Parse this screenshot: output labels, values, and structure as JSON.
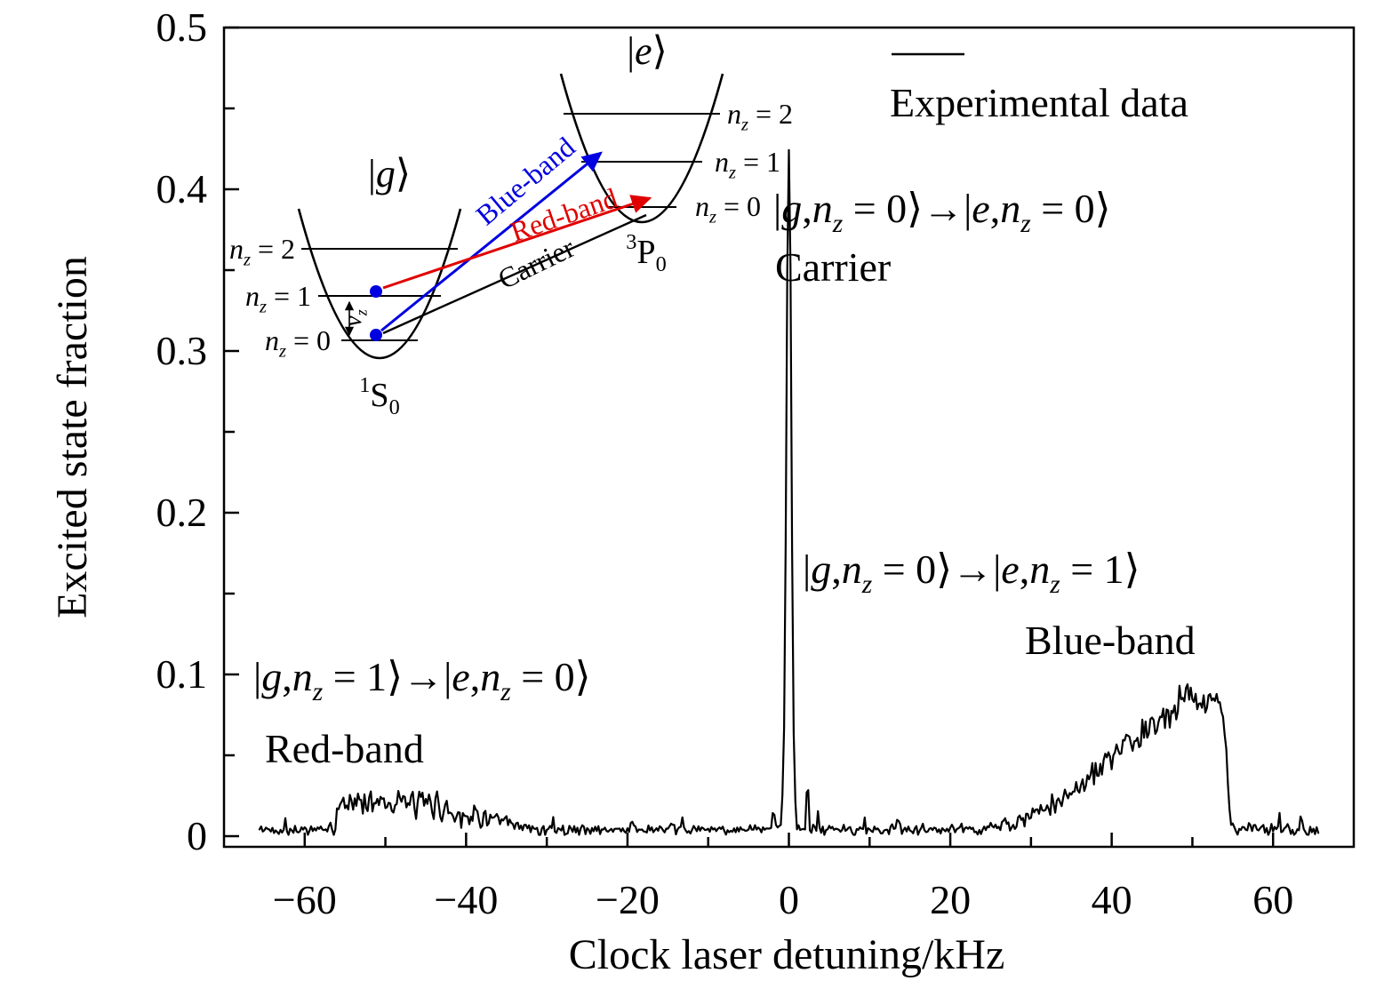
{
  "colors": {
    "trace": "#000000",
    "blue": "#0000e0",
    "red": "#e00000",
    "text": "#000000",
    "background": "#ffffff"
  },
  "axes": {
    "xlabel": "Clock laser detuning/kHz",
    "ylabel": "Excited state fraction",
    "x_ticks": [
      -60,
      -40,
      -20,
      0,
      20,
      40,
      60
    ],
    "x_tick_labels": [
      "−60",
      "−40",
      "−20",
      "0",
      "20",
      "40",
      "60"
    ],
    "x_minor_ticks": [
      -50,
      -30,
      -10,
      10,
      30,
      50
    ],
    "y_ticks": [
      0,
      0.1,
      0.2,
      0.3,
      0.4,
      0.5
    ],
    "y_tick_labels": [
      "0",
      "0.1",
      "0.2",
      "0.3",
      "0.4",
      "0.5"
    ],
    "y_minor_ticks": [
      0.05,
      0.15,
      0.25,
      0.35,
      0.45
    ],
    "xlim": [
      -70,
      70
    ],
    "ylim": [
      0,
      0.5
    ]
  },
  "legend": {
    "label": "Experimental data"
  },
  "annotations": {
    "carrier_transition": "|g,n_{z} = 0⟩→|e,n_{z} = 0⟩",
    "carrier_name": "Carrier",
    "blue_transition": "|g,n_{z} = 0⟩→|e,n_{z} = 1⟩",
    "blue_name": "Blue-band",
    "red_transition": "|g,n_{z} = 1⟩→|e,n_{z} = 0⟩",
    "red_name": "Red-band"
  },
  "inset": {
    "ground_state": "|g⟩",
    "excited_state": "|e⟩",
    "ground_term": "^{1}S_{0}",
    "excited_term": "^{3}P_{0}",
    "ground_level_labels": [
      "n_{z} = 2",
      "n_{z} = 1",
      "n_{z} = 0"
    ],
    "excited_level_labels": [
      "n_{z} = 2",
      "n_{z} = 1",
      "n_{z} = 0"
    ],
    "trap_frequency": "v_{z}",
    "arrow_blue": "Blue-band",
    "arrow_red": "Red-band",
    "arrow_carrier": "Carrier"
  },
  "chart_data": {
    "type": "line",
    "title": "",
    "xlabel": "Clock laser detuning/kHz",
    "ylabel": "Excited state fraction",
    "xlim": [
      -70,
      70
    ],
    "ylim": [
      0,
      0.5
    ],
    "grid": false,
    "legend_position": "upper right",
    "series": [
      {
        "name": "Experimental data",
        "color": "#000000"
      }
    ],
    "features": {
      "baseline_level": 0.005,
      "carrier": {
        "center_kHz": 0,
        "peak": 0.42,
        "fwhm_kHz": 0.7,
        "transition": "|g,nz=0> -> |e,nz=0>"
      },
      "red_sideband": {
        "range_kHz": [
          -56,
          -33
        ],
        "typical_level": 0.021,
        "max": 0.03,
        "transition": "|g,nz=1> -> |e,nz=0>"
      },
      "blue_sideband": {
        "range_kHz": [
          24,
          54.6
        ],
        "peak": 0.095,
        "sharp_edge_kHz": 54.4,
        "transition": "|g,nz=0> -> |e,nz=1>"
      }
    },
    "x_range": [
      -65.6,
      65.6
    ],
    "sample_step_kHz": 0.2,
    "noise_seed": 42,
    "envelope": [
      [
        -65.6,
        0.004
      ],
      [
        -57,
        0.004
      ],
      [
        -56.2,
        0.004
      ],
      [
        -55.8,
        0.02
      ],
      [
        -54,
        0.021
      ],
      [
        -52,
        0.022
      ],
      [
        -50,
        0.022
      ],
      [
        -48,
        0.021
      ],
      [
        -46,
        0.019
      ],
      [
        -44,
        0.02
      ],
      [
        -42,
        0.015
      ],
      [
        -40,
        0.013
      ],
      [
        -38,
        0.012
      ],
      [
        -36,
        0.009
      ],
      [
        -34,
        0.006
      ],
      [
        -33,
        0.005
      ],
      [
        -31,
        0.004
      ],
      [
        -25,
        0.004
      ],
      [
        -15,
        0.004
      ],
      [
        -5,
        0.004
      ],
      [
        -2.5,
        0.004
      ],
      [
        -1.6,
        0.005
      ],
      [
        -1.0,
        0.008
      ],
      [
        -0.7,
        0.03
      ],
      [
        -0.5,
        0.1
      ],
      [
        -0.35,
        0.22
      ],
      [
        -0.2,
        0.35
      ],
      [
        -0.1,
        0.41
      ],
      [
        0,
        0.424
      ],
      [
        0.1,
        0.41
      ],
      [
        0.2,
        0.35
      ],
      [
        0.35,
        0.22
      ],
      [
        0.5,
        0.1
      ],
      [
        0.7,
        0.03
      ],
      [
        1.0,
        0.008
      ],
      [
        1.6,
        0.005
      ],
      [
        2.5,
        0.004
      ],
      [
        5,
        0.004
      ],
      [
        10,
        0.004
      ],
      [
        15,
        0.004
      ],
      [
        20,
        0.004
      ],
      [
        24,
        0.0045
      ],
      [
        26,
        0.006
      ],
      [
        28,
        0.008
      ],
      [
        30,
        0.012
      ],
      [
        32,
        0.017
      ],
      [
        34,
        0.023
      ],
      [
        36,
        0.031
      ],
      [
        38,
        0.04
      ],
      [
        40,
        0.048
      ],
      [
        42,
        0.056
      ],
      [
        44,
        0.064
      ],
      [
        46,
        0.07
      ],
      [
        47.5,
        0.078
      ],
      [
        48.5,
        0.085
      ],
      [
        49.2,
        0.09
      ],
      [
        50,
        0.087
      ],
      [
        50.8,
        0.083
      ],
      [
        51.5,
        0.085
      ],
      [
        52.2,
        0.083
      ],
      [
        53,
        0.085
      ],
      [
        53.8,
        0.077
      ],
      [
        54.2,
        0.055
      ],
      [
        54.5,
        0.025
      ],
      [
        54.8,
        0.008
      ],
      [
        55.2,
        0.005
      ],
      [
        56,
        0.004
      ],
      [
        58,
        0.004
      ],
      [
        60,
        0.0045
      ],
      [
        62,
        0.005
      ],
      [
        64,
        0.004
      ],
      [
        65.6,
        0.004
      ]
    ],
    "noise_amplitude": [
      [
        -65.6,
        0.0025
      ],
      [
        -57,
        0.0028
      ],
      [
        -56,
        0.005
      ],
      [
        -54,
        0.0065
      ],
      [
        -50,
        0.007
      ],
      [
        -46,
        0.0075
      ],
      [
        -44,
        0.007
      ],
      [
        -40,
        0.0065
      ],
      [
        -37,
        0.005
      ],
      [
        -34,
        0.004
      ],
      [
        -32,
        0.003
      ],
      [
        -28,
        0.0028
      ],
      [
        -10,
        0.0025
      ],
      [
        -2,
        0.002
      ],
      [
        -0.5,
        0.003
      ],
      [
        0,
        0.004
      ],
      [
        0.5,
        0.003
      ],
      [
        2,
        0.0028
      ],
      [
        10,
        0.0026
      ],
      [
        20,
        0.0028
      ],
      [
        24,
        0.003
      ],
      [
        28,
        0.004
      ],
      [
        32,
        0.005
      ],
      [
        36,
        0.0055
      ],
      [
        40,
        0.006
      ],
      [
        44,
        0.0065
      ],
      [
        48,
        0.007
      ],
      [
        52,
        0.0065
      ],
      [
        54,
        0.005
      ],
      [
        55,
        0.0035
      ],
      [
        58,
        0.003
      ],
      [
        62,
        0.003
      ],
      [
        65.6,
        0.0025
      ]
    ],
    "spikes": [
      [
        -62.4,
        0.006
      ],
      [
        -29.2,
        0.009
      ],
      [
        -19.5,
        0.006
      ],
      [
        -13.2,
        0.007
      ],
      [
        -1.9,
        0.01
      ],
      [
        2.35,
        0.024
      ],
      [
        3.6,
        0.01
      ],
      [
        9.4,
        0.008
      ],
      [
        13.5,
        0.006
      ],
      [
        57.6,
        0.006
      ],
      [
        60.8,
        0.007
      ],
      [
        63.5,
        0.006
      ]
    ]
  }
}
